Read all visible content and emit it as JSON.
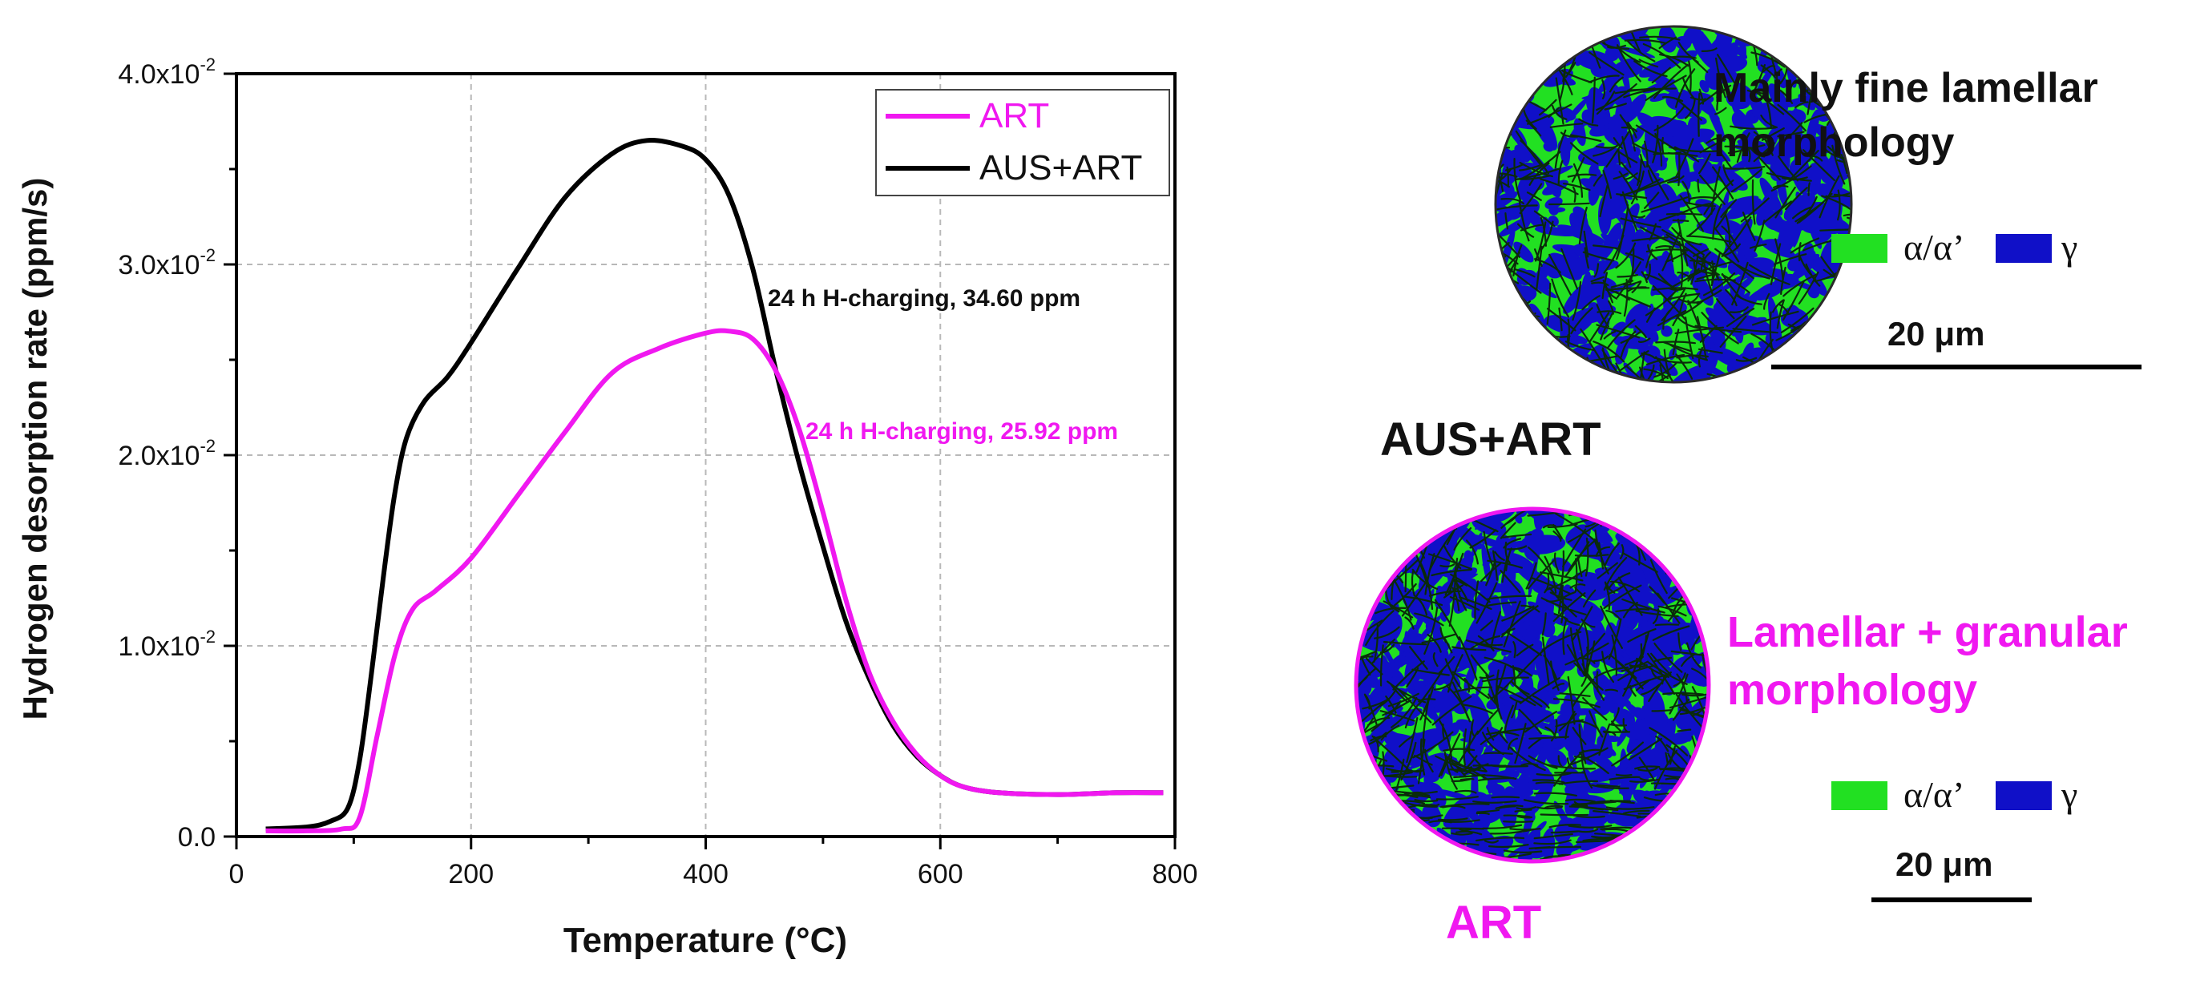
{
  "chart_data": {
    "type": "line",
    "xlabel": "Temperature (°C)",
    "ylabel": "Hydrogen desorption rate (ppm/s)",
    "xlim": [
      0,
      800
    ],
    "ylim": [
      0,
      0.04
    ],
    "xticks": [
      "0",
      "200",
      "400",
      "600",
      "800"
    ],
    "yticks": [
      {
        "mantissa": "0.0",
        "exp": ""
      },
      {
        "mantissa": "1.0x10",
        "exp": "-2"
      },
      {
        "mantissa": "2.0x10",
        "exp": "-2"
      },
      {
        "mantissa": "3.0x10",
        "exp": "-2"
      },
      {
        "mantissa": "4.0x10",
        "exp": "-2"
      }
    ],
    "grid": true,
    "legend_position": "top-right",
    "series": [
      {
        "name": "ART",
        "color": "#f018f0",
        "x": [
          25,
          60,
          90,
          105,
          120,
          135,
          150,
          170,
          200,
          240,
          280,
          320,
          360,
          400,
          420,
          440,
          460,
          480,
          500,
          520,
          540,
          560,
          580,
          600,
          620,
          650,
          700,
          750,
          790
        ],
        "y": [
          0.0003,
          0.0003,
          0.0004,
          0.001,
          0.0053,
          0.0095,
          0.0119,
          0.0129,
          0.0146,
          0.0179,
          0.0212,
          0.0243,
          0.0256,
          0.0264,
          0.0265,
          0.0261,
          0.0244,
          0.0213,
          0.017,
          0.0123,
          0.0085,
          0.006,
          0.0043,
          0.0032,
          0.0026,
          0.0023,
          0.0022,
          0.0023,
          0.0023
        ]
      },
      {
        "name": "AUS+ART",
        "color": "#000000",
        "x": [
          25,
          60,
          80,
          95,
          105,
          115,
          125,
          135,
          145,
          160,
          180,
          200,
          240,
          280,
          320,
          350,
          380,
          400,
          420,
          440,
          460,
          480,
          500,
          520,
          540,
          560,
          580,
          600,
          620,
          650,
          700,
          750,
          790
        ],
        "y": [
          0.0004,
          0.0005,
          0.0008,
          0.0015,
          0.004,
          0.0085,
          0.0135,
          0.018,
          0.0209,
          0.0228,
          0.0241,
          0.0259,
          0.0298,
          0.0335,
          0.0358,
          0.0365,
          0.0362,
          0.0355,
          0.0336,
          0.0298,
          0.0244,
          0.0195,
          0.0152,
          0.0112,
          0.0082,
          0.0058,
          0.0042,
          0.0032,
          0.0026,
          0.0023,
          0.0022,
          0.0023,
          0.0023
        ]
      }
    ],
    "annotations": {
      "aus_art_text": "24 h H-charging, 34.60 ppm",
      "art_text": "24 h H-charging, 25.92 ppm"
    }
  },
  "panels": {
    "aus_art": {
      "title": "AUS+ART",
      "description_line1": "Mainly fine lamellar",
      "description_line2": "morphology",
      "legend_phase1": "α/α’",
      "legend_phase2": "γ",
      "scale_label": "20 μm"
    },
    "art": {
      "title": "ART",
      "description_line1": "Lamellar + granular",
      "description_line2": "morphology",
      "legend_phase1": "α/α’",
      "legend_phase2": "γ",
      "scale_label": "20 μm"
    }
  },
  "colors": {
    "art": "#f018f0",
    "aus_art": "#000000",
    "phase_alpha": "#22e022",
    "phase_gamma": "#1010c8"
  }
}
